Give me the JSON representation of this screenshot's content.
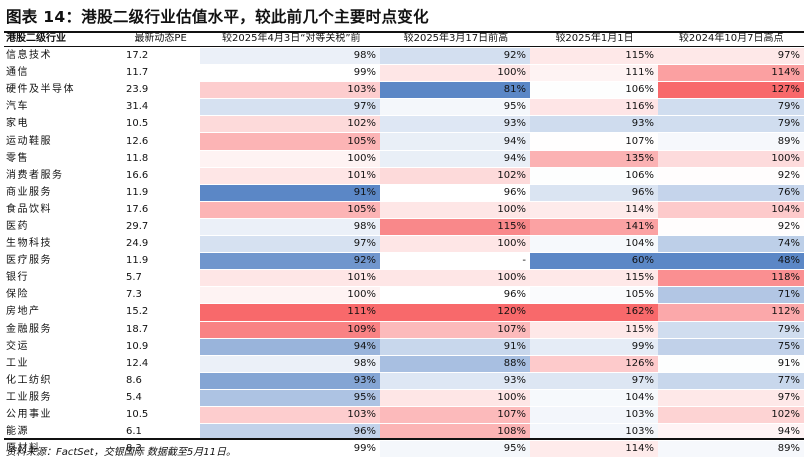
{
  "title": "图表 14：港股二级行业估值水平，较此前几个主要时点变化",
  "columns": [
    "港股二级行业",
    "最新动态PE",
    "较2025年4月3日“对等关税”前",
    "较2025年3月17日前高",
    "较2025年1月1日",
    "较2024年10月7日高点"
  ],
  "rows": [
    {
      "name": "信息技术",
      "pe": "17.2",
      "v": [
        "98%",
        "92%",
        "115%",
        "97%"
      ]
    },
    {
      "name": "通信",
      "pe": "11.7",
      "v": [
        "99%",
        "100%",
        "111%",
        "114%"
      ]
    },
    {
      "name": "硬件及半导体",
      "pe": "23.9",
      "v": [
        "103%",
        "81%",
        "106%",
        "127%"
      ]
    },
    {
      "name": "汽车",
      "pe": "31.4",
      "v": [
        "97%",
        "95%",
        "116%",
        "79%"
      ]
    },
    {
      "name": "家电",
      "pe": "10.5",
      "v": [
        "102%",
        "93%",
        "93%",
        "79%"
      ]
    },
    {
      "name": "运动鞋服",
      "pe": "12.6",
      "v": [
        "105%",
        "94%",
        "107%",
        "89%"
      ]
    },
    {
      "name": "零售",
      "pe": "11.8",
      "v": [
        "100%",
        "94%",
        "135%",
        "100%"
      ]
    },
    {
      "name": "消费者服务",
      "pe": "16.6",
      "v": [
        "101%",
        "102%",
        "106%",
        "92%"
      ]
    },
    {
      "name": "商业服务",
      "pe": "11.9",
      "v": [
        "91%",
        "96%",
        "96%",
        "76%"
      ]
    },
    {
      "name": "食品饮料",
      "pe": "17.6",
      "v": [
        "105%",
        "100%",
        "114%",
        "104%"
      ]
    },
    {
      "name": "医药",
      "pe": "29.7",
      "v": [
        "98%",
        "115%",
        "141%",
        "92%"
      ]
    },
    {
      "name": "生物科技",
      "pe": "24.9",
      "v": [
        "97%",
        "100%",
        "104%",
        "74%"
      ]
    },
    {
      "name": "医疗服务",
      "pe": "11.9",
      "v": [
        "92%",
        "-",
        "60%",
        "48%"
      ]
    },
    {
      "name": "银行",
      "pe": "5.7",
      "v": [
        "101%",
        "100%",
        "115%",
        "118%"
      ]
    },
    {
      "name": "保险",
      "pe": "7.3",
      "v": [
        "100%",
        "96%",
        "105%",
        "71%"
      ]
    },
    {
      "name": "房地产",
      "pe": "15.2",
      "v": [
        "111%",
        "120%",
        "162%",
        "112%"
      ]
    },
    {
      "name": "金融服务",
      "pe": "18.7",
      "v": [
        "109%",
        "107%",
        "115%",
        "79%"
      ]
    },
    {
      "name": "交运",
      "pe": "10.9",
      "v": [
        "94%",
        "91%",
        "99%",
        "75%"
      ]
    },
    {
      "name": "工业",
      "pe": "12.4",
      "v": [
        "98%",
        "88%",
        "126%",
        "91%"
      ]
    },
    {
      "name": "化工纺织",
      "pe": "8.6",
      "v": [
        "93%",
        "93%",
        "97%",
        "77%"
      ]
    },
    {
      "name": "工业服务",
      "pe": "5.4",
      "v": [
        "95%",
        "100%",
        "104%",
        "97%"
      ]
    },
    {
      "name": "公用事业",
      "pe": "10.5",
      "v": [
        "103%",
        "107%",
        "103%",
        "102%"
      ]
    },
    {
      "name": "能源",
      "pe": "6.1",
      "v": [
        "96%",
        "108%",
        "103%",
        "94%"
      ]
    },
    {
      "name": "原材料",
      "pe": "8.3",
      "v": [
        "99%",
        "95%",
        "114%",
        "89%"
      ]
    }
  ],
  "color_scale": {
    "low": "#5b87c6",
    "mid": "#ffffff",
    "high": "#f8696b"
  },
  "source": "资料来源：FactSet，交银国际  数据截至5月11日。"
}
